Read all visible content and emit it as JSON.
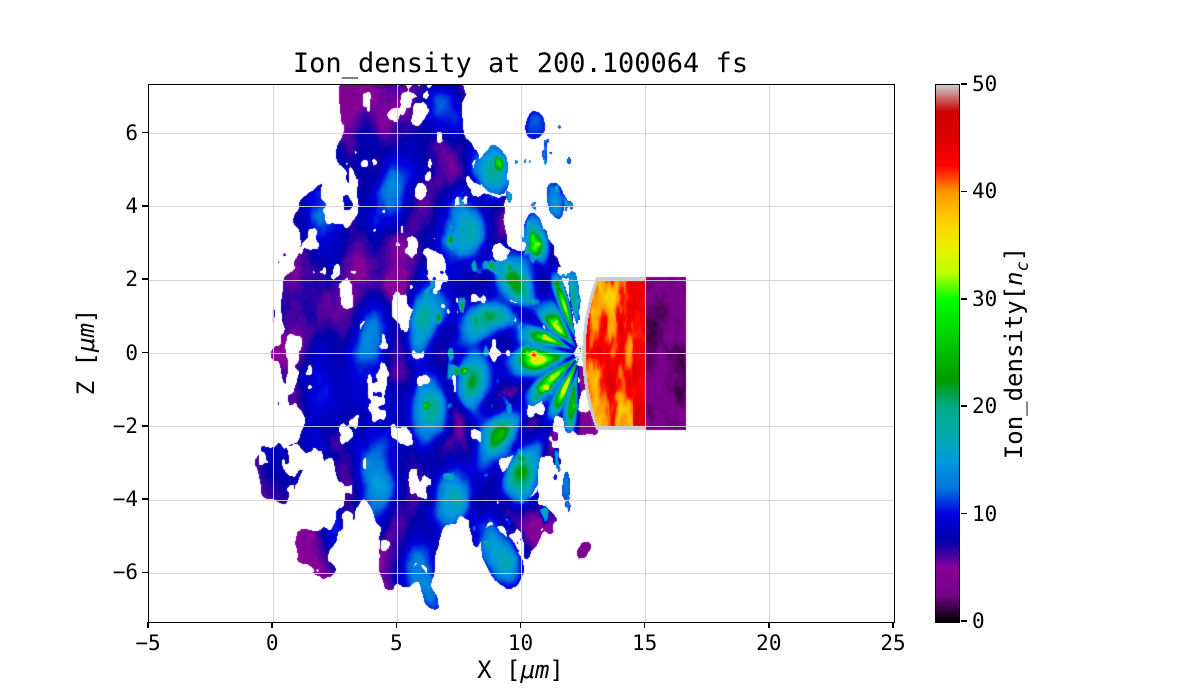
{
  "chart_data": {
    "type": "heatmap",
    "title": "Ion_density at 200.100064 fs",
    "xlabel": {
      "pre": "X [",
      "unit": "μm",
      "post": "]"
    },
    "ylabel": {
      "pre": "Z [",
      "unit": "μm",
      "post": "]"
    },
    "x_range": [
      -5,
      25
    ],
    "z_range": [
      -7.33,
      7.33
    ],
    "grid": true,
    "x_ticks": [
      {
        "v": -5,
        "label": "−5"
      },
      {
        "v": 0,
        "label": "0"
      },
      {
        "v": 5,
        "label": "5"
      },
      {
        "v": 10,
        "label": "10"
      },
      {
        "v": 15,
        "label": "15"
      },
      {
        "v": 20,
        "label": "20"
      },
      {
        "v": 25,
        "label": "25"
      }
    ],
    "z_ticks": [
      {
        "v": -6,
        "label": "−6"
      },
      {
        "v": -4,
        "label": "−4"
      },
      {
        "v": -2,
        "label": "−2"
      },
      {
        "v": 0,
        "label": "0"
      },
      {
        "v": 2,
        "label": "2"
      },
      {
        "v": 4,
        "label": "4"
      },
      {
        "v": 6,
        "label": "6"
      }
    ],
    "colorbar": {
      "label": {
        "pre": "Ion_density[",
        "sym": "n",
        "sub": "c",
        "post": "]"
      },
      "vmin": 0,
      "vmax": 50,
      "ticks": [
        {
          "v": 0,
          "label": "0"
        },
        {
          "v": 10,
          "label": "10"
        },
        {
          "v": 20,
          "label": "20"
        },
        {
          "v": 30,
          "label": "30"
        },
        {
          "v": 40,
          "label": "40"
        },
        {
          "v": 50,
          "label": "50"
        }
      ],
      "colormap": "nipy_spectral",
      "stops": [
        [
          0.0,
          0,
          0,
          0
        ],
        [
          0.05,
          119,
          0,
          136
        ],
        [
          0.1,
          136,
          0,
          153
        ],
        [
          0.15,
          0,
          0,
          170
        ],
        [
          0.2,
          0,
          0,
          221
        ],
        [
          0.25,
          0,
          119,
          221
        ],
        [
          0.3,
          0,
          153,
          221
        ],
        [
          0.35,
          0,
          170,
          170
        ],
        [
          0.4,
          0,
          170,
          136
        ],
        [
          0.45,
          0,
          153,
          0
        ],
        [
          0.5,
          0,
          187,
          0
        ],
        [
          0.55,
          0,
          221,
          0
        ],
        [
          0.6,
          0,
          255,
          0
        ],
        [
          0.65,
          187,
          255,
          0
        ],
        [
          0.7,
          238,
          238,
          0
        ],
        [
          0.75,
          255,
          204,
          0
        ],
        [
          0.8,
          255,
          153,
          0
        ],
        [
          0.85,
          255,
          0,
          0
        ],
        [
          0.9,
          221,
          0,
          0
        ],
        [
          0.95,
          204,
          0,
          0
        ],
        [
          1.0,
          204,
          204,
          204
        ]
      ]
    },
    "features": {
      "description": "Laser-plasma PIC snapshot: dense target slab near x=13–16.6 μm, |z|<2.1 μm; hot compressed front (35–50 nc) with gray saturated rim; filamentary plume expanding toward −x; speckled purple/black halo with ragged white gaps",
      "target_slab_remainder": {
        "x": [
          15.0,
          16.6
        ],
        "z": [
          -2.1,
          2.1
        ],
        "density": [
          0,
          4
        ]
      },
      "hot_front": {
        "x": [
          12.5,
          15.0
        ],
        "z": [
          -2.1,
          2.1
        ],
        "density": [
          34,
          50
        ]
      },
      "plume_origin": [
        12.4,
        0.0
      ],
      "plume_extent_x": [
        -1,
        12.4
      ],
      "plume_peak_density": 37,
      "halo_center": [
        5.8,
        0.0
      ],
      "halo_radii": [
        7.0,
        7.1
      ],
      "halo_density": [
        1,
        9
      ]
    },
    "render": {
      "slab": {
        "x0": 15.0,
        "x1": 16.62,
        "half_z": 2.08,
        "base": 0.6,
        "amp": 3.2
      },
      "hot_front": {
        "x_tip": 12.45,
        "tip_curve": 0.55,
        "half_z": 2.08,
        "rim_value": 50,
        "rim_width": 0.13,
        "base": 34,
        "amp": 14
      },
      "plume": {
        "origin": [
          12.4,
          0.0
        ],
        "amp": 30,
        "decay": 5.2,
        "amp2": 7,
        "decay2": 10,
        "filament_count": 16,
        "wedge_inner": 1.15,
        "wedge_outer": 1.75
      },
      "halo": {
        "center": [
          5.8,
          0.0
        ],
        "rx": 7.0,
        "rz": 7.1,
        "base": 2.2,
        "amp": 7
      },
      "hotspot": {
        "threshold": 0.7,
        "gain": 20,
        "max_r": 6.5
      },
      "holes": {
        "threshold": 0.32
      },
      "mask": {
        "noise_gain": 0.8,
        "noise_bias": 0.62
      }
    }
  }
}
